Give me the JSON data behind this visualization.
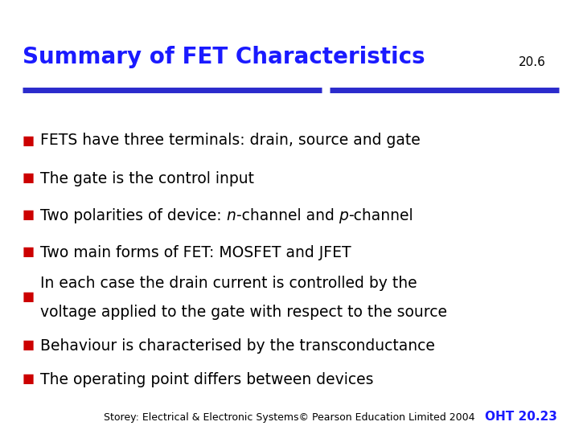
{
  "title": "Summary of FET Characteristics",
  "section_number": "20.6",
  "title_color": "#1a1aff",
  "title_fontsize": 20,
  "background_color": "#ffffff",
  "bullet_color": "#cc0000",
  "bullet_text_color": "#000000",
  "bullet_fontsize": 13.5,
  "line_color_left": "#2b2bcc",
  "line_color_right": "#2b2bcc",
  "bullets": [
    "FETS have three terminals: drain, source and gate",
    "The gate is the control input",
    "Two polarities of device: n-channel and p-channel",
    "Two main forms of FET: MOSFET and JFET",
    "In each case the drain current is controlled by the\nvoltage applied to the gate with respect to the source",
    "Behaviour is characterised by the transconductance",
    "The operating point differs between devices"
  ],
  "footer_text": "Storey: Electrical & Electronic Systems© Pearson Education Limited 2004",
  "footer_right": "OHT 20.23",
  "footer_color": "#000000",
  "footer_right_color": "#1a1aff",
  "footer_fontsize": 9
}
